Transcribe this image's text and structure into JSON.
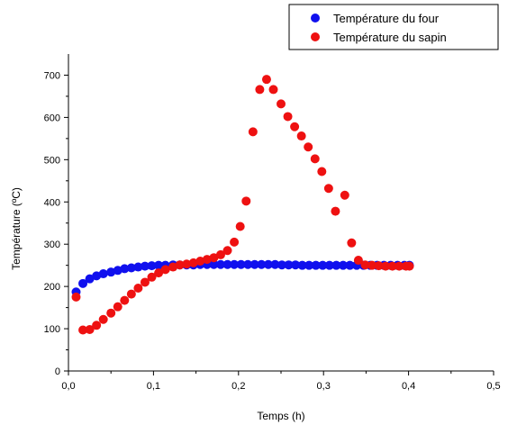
{
  "chart_data": {
    "type": "scatter",
    "xlabel": "Temps (h)",
    "ylabel": "Température (ºC)",
    "xlim": [
      0,
      0.5
    ],
    "ylim": [
      0,
      750
    ],
    "x_ticks": [
      0,
      0.1,
      0.2,
      0.3,
      0.4,
      0.5
    ],
    "x_tick_labels": [
      "0,0",
      "0,1",
      "0,2",
      "0,3",
      "0,4",
      "0,5"
    ],
    "y_ticks": [
      0,
      100,
      200,
      300,
      400,
      500,
      600,
      700
    ],
    "y_tick_labels": [
      "0",
      "100",
      "200",
      "300",
      "400",
      "500",
      "600",
      "700"
    ],
    "grid": false,
    "legend_position": "top-right",
    "series": [
      {
        "name": "Température du four",
        "color": "#1010ee",
        "points": [
          [
            0.009,
            187
          ],
          [
            0.017,
            207
          ],
          [
            0.025,
            218
          ],
          [
            0.033,
            225
          ],
          [
            0.041,
            230
          ],
          [
            0.05,
            234
          ],
          [
            0.058,
            238
          ],
          [
            0.066,
            242
          ],
          [
            0.074,
            244
          ],
          [
            0.082,
            246
          ],
          [
            0.09,
            248
          ],
          [
            0.098,
            249
          ],
          [
            0.106,
            250
          ],
          [
            0.114,
            250
          ],
          [
            0.123,
            251
          ],
          [
            0.131,
            251
          ],
          [
            0.139,
            251
          ],
          [
            0.147,
            251
          ],
          [
            0.155,
            252
          ],
          [
            0.163,
            252
          ],
          [
            0.171,
            252
          ],
          [
            0.179,
            252
          ],
          [
            0.187,
            252
          ],
          [
            0.195,
            252
          ],
          [
            0.203,
            252
          ],
          [
            0.211,
            252
          ],
          [
            0.219,
            252
          ],
          [
            0.227,
            252
          ],
          [
            0.235,
            252
          ],
          [
            0.243,
            252
          ],
          [
            0.251,
            251
          ],
          [
            0.259,
            251
          ],
          [
            0.267,
            251
          ],
          [
            0.275,
            250
          ],
          [
            0.283,
            250
          ],
          [
            0.291,
            250
          ],
          [
            0.299,
            250
          ],
          [
            0.307,
            250
          ],
          [
            0.315,
            250
          ],
          [
            0.323,
            250
          ],
          [
            0.331,
            250
          ],
          [
            0.339,
            250
          ],
          [
            0.347,
            250
          ],
          [
            0.355,
            250
          ],
          [
            0.363,
            250
          ],
          [
            0.371,
            250
          ],
          [
            0.379,
            250
          ],
          [
            0.387,
            250
          ],
          [
            0.395,
            250
          ],
          [
            0.401,
            250
          ]
        ]
      },
      {
        "name": "Température du sapin",
        "color": "#ee1111",
        "points": [
          [
            0.009,
            175
          ],
          [
            0.017,
            97
          ],
          [
            0.025,
            98
          ],
          [
            0.033,
            108
          ],
          [
            0.041,
            122
          ],
          [
            0.05,
            137
          ],
          [
            0.058,
            152
          ],
          [
            0.066,
            167
          ],
          [
            0.074,
            182
          ],
          [
            0.082,
            196
          ],
          [
            0.09,
            210
          ],
          [
            0.098,
            222
          ],
          [
            0.106,
            232
          ],
          [
            0.114,
            240
          ],
          [
            0.123,
            246
          ],
          [
            0.131,
            251
          ],
          [
            0.139,
            253
          ],
          [
            0.147,
            256
          ],
          [
            0.155,
            260
          ],
          [
            0.163,
            264
          ],
          [
            0.171,
            268
          ],
          [
            0.179,
            275
          ],
          [
            0.187,
            285
          ],
          [
            0.195,
            305
          ],
          [
            0.202,
            342
          ],
          [
            0.209,
            402
          ],
          [
            0.217,
            566
          ],
          [
            0.225,
            666
          ],
          [
            0.233,
            690
          ],
          [
            0.241,
            666
          ],
          [
            0.25,
            632
          ],
          [
            0.258,
            602
          ],
          [
            0.266,
            578
          ],
          [
            0.274,
            556
          ],
          [
            0.282,
            530
          ],
          [
            0.29,
            502
          ],
          [
            0.298,
            472
          ],
          [
            0.306,
            432
          ],
          [
            0.314,
            378
          ],
          [
            0.325,
            416
          ],
          [
            0.333,
            303
          ],
          [
            0.341,
            262
          ],
          [
            0.349,
            251
          ],
          [
            0.357,
            250
          ],
          [
            0.365,
            249
          ],
          [
            0.373,
            248
          ],
          [
            0.381,
            248
          ],
          [
            0.389,
            248
          ],
          [
            0.397,
            248
          ],
          [
            0.401,
            248
          ]
        ]
      }
    ]
  }
}
